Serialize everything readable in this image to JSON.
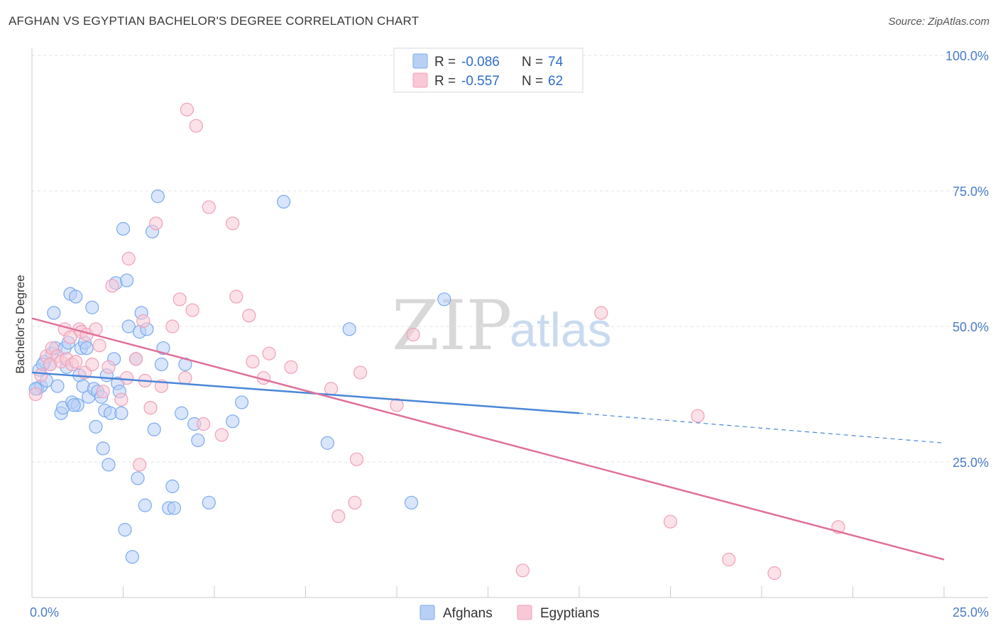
{
  "title": "AFGHAN VS EGYPTIAN BACHELOR'S DEGREE CORRELATION CHART",
  "source": "Source: ZipAtlas.com",
  "watermark": {
    "zip": "ZIP",
    "atlas": "atlas"
  },
  "legend": {
    "series": [
      {
        "name": "Afghans",
        "r_label": "R =",
        "r_value": "-0.086",
        "n_label": "N =",
        "n_value": "74",
        "color": "#7aaaf0",
        "fill": "#b9d0f5"
      },
      {
        "name": "Egyptians",
        "r_label": "R =",
        "r_value": "-0.557",
        "n_label": "N =",
        "n_value": "62",
        "color": "#f0a0b8",
        "fill": "#f8c8d6"
      }
    ]
  },
  "chart_data": {
    "type": "scatter",
    "title": "AFGHAN VS EGYPTIAN BACHELOR'S DEGREE CORRELATION CHART",
    "xlabel": "",
    "ylabel": "Bachelor's Degree",
    "xlim": [
      0,
      25
    ],
    "ylim": [
      0,
      100
    ],
    "x_tick_labels": [
      "0.0%",
      "25.0%"
    ],
    "y_ticks": [
      25,
      50,
      75,
      100
    ],
    "y_tick_labels": [
      "25.0%",
      "50.0%",
      "75.0%",
      "100.0%"
    ],
    "series": [
      {
        "name": "Afghans",
        "color": "#4a86d8",
        "points": [
          [
            0.15,
            38.5
          ],
          [
            0.2,
            42.0
          ],
          [
            0.25,
            39.0
          ],
          [
            0.35,
            43.5
          ],
          [
            0.4,
            40.0
          ],
          [
            0.5,
            43.0
          ],
          [
            0.55,
            45.0
          ],
          [
            0.6,
            52.5
          ],
          [
            0.65,
            46.0
          ],
          [
            0.7,
            39.0
          ],
          [
            0.8,
            34.0
          ],
          [
            0.85,
            35.0
          ],
          [
            0.9,
            46.0
          ],
          [
            0.95,
            42.5
          ],
          [
            1.0,
            47.0
          ],
          [
            1.05,
            56.0
          ],
          [
            1.1,
            36.0
          ],
          [
            1.2,
            55.5
          ],
          [
            1.25,
            35.5
          ],
          [
            1.3,
            41.0
          ],
          [
            1.35,
            46.0
          ],
          [
            1.4,
            39.0
          ],
          [
            1.45,
            47.0
          ],
          [
            1.5,
            46.0
          ],
          [
            1.55,
            37.0
          ],
          [
            1.65,
            53.5
          ],
          [
            1.7,
            38.5
          ],
          [
            1.75,
            31.5
          ],
          [
            1.8,
            38.0
          ],
          [
            1.9,
            37.0
          ],
          [
            1.95,
            27.5
          ],
          [
            2.0,
            34.5
          ],
          [
            2.05,
            41.0
          ],
          [
            2.1,
            24.5
          ],
          [
            2.15,
            34.0
          ],
          [
            2.25,
            44.0
          ],
          [
            2.3,
            58.0
          ],
          [
            2.35,
            39.5
          ],
          [
            2.45,
            34.0
          ],
          [
            2.5,
            68.0
          ],
          [
            2.55,
            12.5
          ],
          [
            2.6,
            58.5
          ],
          [
            2.65,
            50.0
          ],
          [
            2.75,
            7.5
          ],
          [
            2.85,
            44.0
          ],
          [
            2.9,
            22.0
          ],
          [
            2.95,
            49.0
          ],
          [
            3.0,
            52.5
          ],
          [
            3.1,
            17.0
          ],
          [
            3.15,
            49.5
          ],
          [
            3.3,
            67.5
          ],
          [
            3.35,
            31.0
          ],
          [
            3.45,
            74.0
          ],
          [
            3.55,
            43.0
          ],
          [
            3.6,
            46.0
          ],
          [
            3.75,
            16.5
          ],
          [
            3.85,
            20.5
          ],
          [
            3.9,
            16.5
          ],
          [
            4.1,
            34.0
          ],
          [
            4.2,
            43.0
          ],
          [
            4.45,
            32.0
          ],
          [
            4.55,
            29.0
          ],
          [
            4.85,
            17.5
          ],
          [
            5.5,
            32.5
          ],
          [
            5.75,
            36.0
          ],
          [
            6.9,
            73.0
          ],
          [
            8.1,
            28.5
          ],
          [
            8.7,
            49.5
          ],
          [
            10.4,
            17.5
          ],
          [
            11.3,
            55.0
          ],
          [
            0.1,
            38.5
          ],
          [
            0.3,
            43.0
          ],
          [
            1.15,
            35.5
          ],
          [
            2.4,
            38.0
          ]
        ],
        "trend": {
          "x": [
            0,
            15
          ],
          "y": [
            41.5,
            34.0
          ],
          "dashed_to": [
            25,
            28.5
          ]
        }
      },
      {
        "name": "Egyptians",
        "color": "#e0709a",
        "points": [
          [
            0.1,
            37.5
          ],
          [
            0.25,
            41.0
          ],
          [
            0.4,
            44.5
          ],
          [
            0.5,
            43.0
          ],
          [
            0.55,
            46.0
          ],
          [
            0.7,
            44.5
          ],
          [
            0.8,
            43.5
          ],
          [
            0.9,
            49.5
          ],
          [
            0.95,
            44.0
          ],
          [
            1.05,
            48.0
          ],
          [
            1.1,
            43.0
          ],
          [
            1.2,
            43.5
          ],
          [
            1.3,
            49.5
          ],
          [
            1.35,
            49.0
          ],
          [
            1.45,
            41.5
          ],
          [
            1.5,
            48.5
          ],
          [
            1.65,
            43.0
          ],
          [
            1.75,
            49.5
          ],
          [
            1.85,
            46.5
          ],
          [
            1.95,
            38.0
          ],
          [
            2.1,
            42.5
          ],
          [
            2.2,
            57.5
          ],
          [
            2.45,
            36.5
          ],
          [
            2.6,
            40.5
          ],
          [
            2.65,
            62.5
          ],
          [
            2.85,
            44.0
          ],
          [
            2.95,
            24.5
          ],
          [
            3.05,
            51.0
          ],
          [
            3.1,
            40.0
          ],
          [
            3.25,
            35.0
          ],
          [
            3.4,
            69.0
          ],
          [
            3.55,
            39.0
          ],
          [
            3.85,
            50.0
          ],
          [
            4.05,
            55.0
          ],
          [
            4.2,
            40.5
          ],
          [
            4.25,
            90.0
          ],
          [
            4.4,
            53.0
          ],
          [
            4.5,
            87.0
          ],
          [
            4.7,
            32.0
          ],
          [
            4.85,
            72.0
          ],
          [
            5.2,
            30.0
          ],
          [
            5.5,
            69.0
          ],
          [
            5.6,
            55.5
          ],
          [
            5.95,
            52.0
          ],
          [
            6.05,
            43.5
          ],
          [
            6.35,
            40.5
          ],
          [
            6.5,
            45.0
          ],
          [
            7.1,
            42.5
          ],
          [
            8.2,
            38.5
          ],
          [
            8.4,
            15.0
          ],
          [
            8.85,
            17.5
          ],
          [
            8.9,
            25.5
          ],
          [
            9.0,
            41.5
          ],
          [
            10.0,
            35.5
          ],
          [
            10.45,
            48.5
          ],
          [
            13.45,
            5.0
          ],
          [
            15.6,
            52.5
          ],
          [
            17.5,
            14.0
          ],
          [
            18.25,
            33.5
          ],
          [
            19.1,
            7.0
          ],
          [
            20.35,
            4.5
          ],
          [
            22.1,
            13.0
          ]
        ],
        "trend": {
          "x": [
            0,
            25
          ],
          "y": [
            51.5,
            7.0
          ]
        }
      }
    ]
  }
}
